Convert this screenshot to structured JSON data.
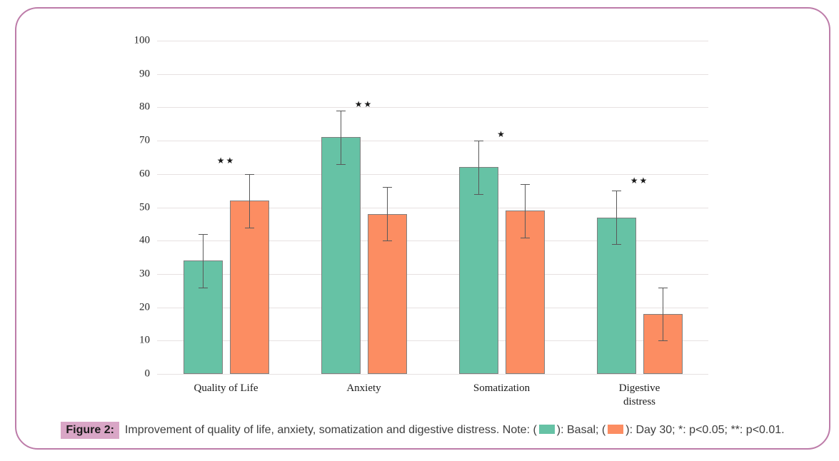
{
  "figure": {
    "caption": {
      "label": "Figure 2:",
      "text_before_basal": "Improvement of quality of life, anxiety, somatization and digestive distress. Note: (",
      "between_swatches": "): Basal; (",
      "text_after_day30": "): Day 30; *: p<0.05; **: p<0.01."
    },
    "accent_colors": {
      "frame_border": "#bd7ca9",
      "figure_label_highlight": "#d9a6c6"
    }
  },
  "chart_data": {
    "type": "bar",
    "title": "",
    "xlabel": "",
    "ylabel": "",
    "categories": [
      "Quality of Life",
      "Anxiety",
      "Somatization",
      "Digestive distress"
    ],
    "series": [
      {
        "name": "Basal",
        "color": "#66c2a5",
        "values": [
          34,
          71,
          62,
          47
        ],
        "errors": [
          8,
          8,
          8,
          8
        ]
      },
      {
        "name": "Day 30",
        "color": "#fc8d62",
        "values": [
          52,
          48,
          49,
          18
        ],
        "errors": [
          8,
          8,
          8,
          8
        ]
      }
    ],
    "annotations": [
      {
        "category": "Quality of Life",
        "text": "**",
        "y": 64
      },
      {
        "category": "Anxiety",
        "text": "**",
        "y": 81
      },
      {
        "category": "Somatization",
        "text": "*",
        "y": 72
      },
      {
        "category": "Digestive distress",
        "text": "**",
        "y": 58
      }
    ],
    "ylim": [
      0,
      100
    ],
    "ytick_step": 10,
    "yticks": [
      0,
      10,
      20,
      30,
      40,
      50,
      60,
      70,
      80,
      90,
      100
    ],
    "grid": true,
    "legend_position": "in-caption",
    "significance_legend": {
      "*": "p<0.05",
      "**": "p<0.01"
    }
  }
}
